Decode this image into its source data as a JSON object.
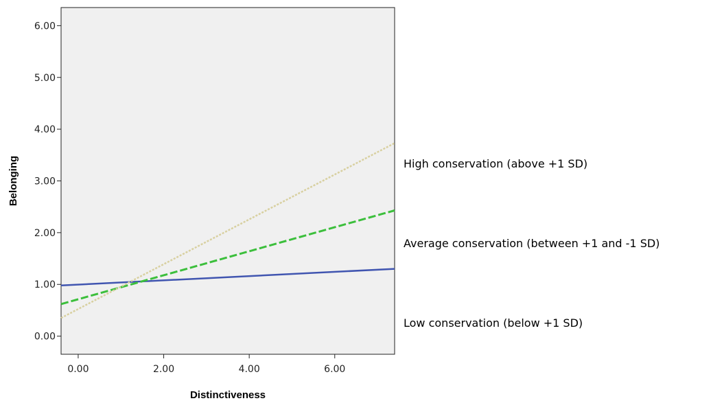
{
  "chart_data": {
    "type": "line",
    "title": "",
    "xlabel": "Distinctiveness",
    "ylabel": "Belonging",
    "xlim": [
      -0.4,
      7.4
    ],
    "ylim": [
      -0.35,
      6.35
    ],
    "x_ticks": [
      0,
      2,
      4,
      6
    ],
    "x_tick_labels": [
      "0.00",
      "2.00",
      "4.00",
      "6.00"
    ],
    "y_ticks": [
      0,
      1,
      2,
      3,
      4,
      5,
      6
    ],
    "y_tick_labels": [
      "0.00",
      "1.00",
      "2.00",
      "3.00",
      "4.00",
      "5.00",
      "6.00"
    ],
    "grid": false,
    "plot_background": "#f0f0f0",
    "series": [
      {
        "name": "Low conservation (below +1 SD)",
        "color": "#4055b0",
        "style": "solid",
        "x": [
          -0.4,
          7.4
        ],
        "y": [
          0.98,
          1.3
        ]
      },
      {
        "name": "Average conservation (between +1 and -1 SD)",
        "color": "#3cbf3c",
        "style": "dashed",
        "x": [
          -0.4,
          7.4
        ],
        "y": [
          0.62,
          2.43
        ]
      },
      {
        "name": "High conservation (above +1 SD)",
        "color": "#d8d0a0",
        "style": "dotted",
        "x": [
          -0.4,
          7.4
        ],
        "y": [
          0.35,
          3.73
        ]
      }
    ],
    "legend_order": [
      2,
      1,
      0
    ],
    "legend_placement": "right"
  }
}
